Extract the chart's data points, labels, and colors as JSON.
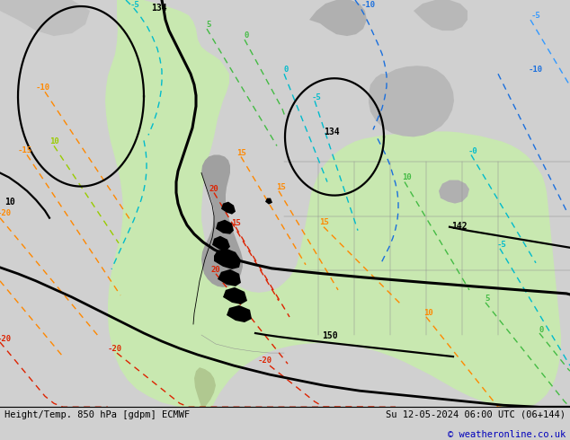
{
  "title_left": "Height/Temp. 850 hPa [gdpm] ECMWF",
  "title_right": "Su 12-05-2024 06:00 UTC (06+144)",
  "copyright": "© weatheronline.co.uk",
  "bg_color": "#d0d0d0",
  "land_green": "#c8e8b0",
  "land_gray": "#a8a8a8",
  "figsize": [
    6.34,
    4.9
  ],
  "dpi": 100
}
